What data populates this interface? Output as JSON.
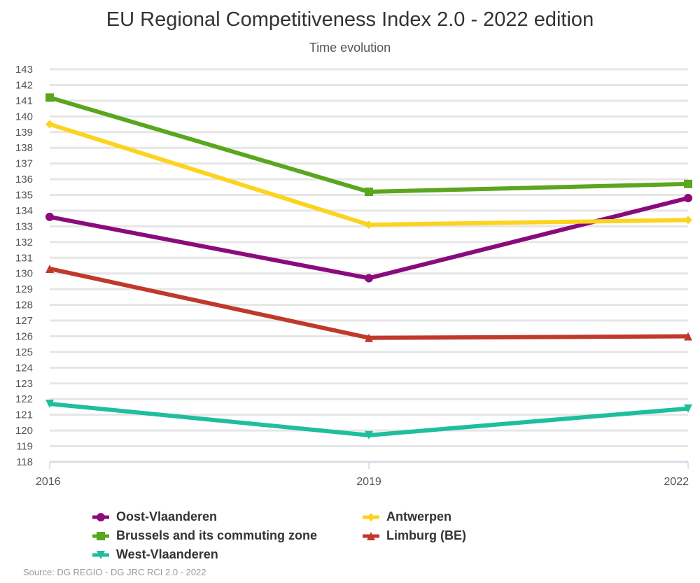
{
  "chart_data": {
    "type": "line",
    "title": "EU Regional Competitiveness Index 2.0 - 2022 edition",
    "subtitle": "Time evolution",
    "x": [
      "2016",
      "2019",
      "2022"
    ],
    "ylim": [
      118,
      143
    ],
    "yticks": [
      118,
      119,
      120,
      121,
      122,
      123,
      124,
      125,
      126,
      127,
      128,
      129,
      130,
      131,
      132,
      133,
      134,
      135,
      136,
      137,
      138,
      139,
      140,
      141,
      142,
      143
    ],
    "grid": true,
    "legend_position": "bottom",
    "series": [
      {
        "name": "Oost-Vlaanderen",
        "values": [
          133.6,
          129.7,
          134.8
        ],
        "color": "#8b0a7c",
        "marker": "circle"
      },
      {
        "name": "Antwerpen",
        "values": [
          139.5,
          133.1,
          133.4
        ],
        "color": "#fcd31f",
        "marker": "diamond"
      },
      {
        "name": "Brussels and its commuting zone",
        "values": [
          141.2,
          135.2,
          135.7
        ],
        "color": "#5aa61e",
        "marker": "square"
      },
      {
        "name": "Limburg (BE)",
        "values": [
          130.3,
          125.9,
          126.0
        ],
        "color": "#c0392b",
        "marker": "triangle-up"
      },
      {
        "name": "West-Vlaanderen",
        "values": [
          121.7,
          119.7,
          121.4
        ],
        "color": "#1fbe9c",
        "marker": "triangle-down"
      }
    ],
    "source": "Source: DG REGIO - DG JRC RCI 2.0 - 2022"
  }
}
